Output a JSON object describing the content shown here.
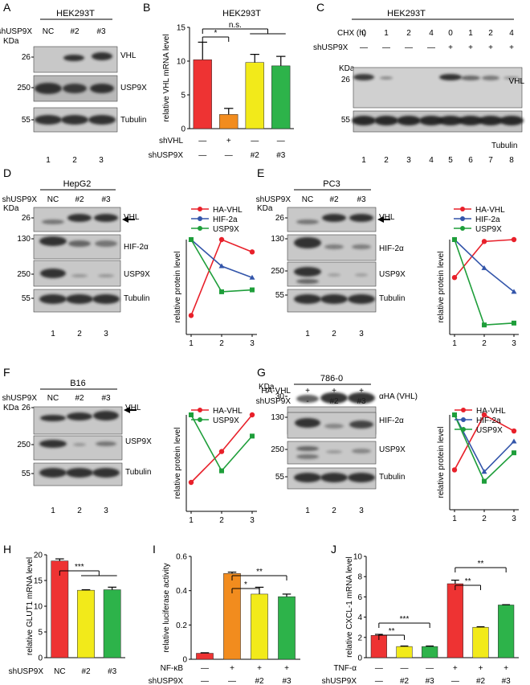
{
  "panels": {
    "A": {
      "letter": "A",
      "cell": "HEK293T",
      "lane_label": "shUSP9X",
      "lanes": [
        "NC",
        "#2",
        "#3"
      ],
      "kda": "KDa",
      "bands": [
        {
          "mw": "26",
          "name": "VHL"
        },
        {
          "mw": "250",
          "name": "USP9X"
        },
        {
          "mw": "55",
          "name": "Tubulin"
        }
      ],
      "lane_numbers": [
        "1",
        "2",
        "3"
      ]
    },
    "B": {
      "letter": "B",
      "title": "HEK293T",
      "ylabel": "relative VHL mRNA level",
      "sig": [
        "*",
        "n.s."
      ],
      "rows": [
        {
          "label": "shVHL",
          "marks": [
            "—",
            "+",
            "—",
            "—"
          ]
        },
        {
          "label": "shUSP9X",
          "marks": [
            "—",
            "—",
            "#2",
            "#3"
          ]
        }
      ]
    },
    "C": {
      "letter": "C",
      "cell": "HEK293T",
      "chx_label": "CHX (h)",
      "chx": [
        "0",
        "1",
        "2",
        "4",
        "0",
        "1",
        "2",
        "4"
      ],
      "sh_label": "shUSP9X",
      "sh": [
        "—",
        "—",
        "—",
        "—",
        "+",
        "+",
        "+",
        "+"
      ],
      "kda": "KDa",
      "bands": [
        {
          "mw": "26",
          "name": "VHL"
        },
        {
          "mw": "55",
          "name": "Tubulin"
        }
      ],
      "lane_numbers": [
        "1",
        "2",
        "3",
        "4",
        "5",
        "6",
        "7",
        "8"
      ]
    },
    "D": {
      "letter": "D",
      "cell": "HepG2",
      "lane_label": "shUSP9X",
      "lanes": [
        "NC",
        "#2",
        "#3"
      ],
      "kda": "KDa",
      "bands": [
        {
          "mw": "26",
          "name": "VHL"
        },
        {
          "mw": "130",
          "name": "HIF-2α"
        },
        {
          "mw": "250",
          "name": "USP9X"
        },
        {
          "mw": "55",
          "name": "Tubulin"
        }
      ],
      "lane_numbers": [
        "1",
        "2",
        "3"
      ]
    },
    "E": {
      "letter": "E",
      "cell": "PC3",
      "lane_label": "shUSP9X",
      "lanes": [
        "NC",
        "#2",
        "#3"
      ],
      "kda": "KDa",
      "bands": [
        {
          "mw": "26",
          "name": "VHL"
        },
        {
          "mw": "130",
          "name": "HIF-2α"
        },
        {
          "mw": "250",
          "name": "USP9X"
        },
        {
          "mw": "55",
          "name": "Tubulin"
        }
      ],
      "lane_numbers": [
        "1",
        "2",
        "3"
      ]
    },
    "F": {
      "letter": "F",
      "cell": "B16",
      "lane_label": "shUSP9X",
      "lanes": [
        "NC",
        "#2",
        "#3"
      ],
      "kda": "KDa",
      "bands": [
        {
          "mw": "26",
          "name": "VHL"
        },
        {
          "mw": "250",
          "name": "USP9X"
        },
        {
          "mw": "55",
          "name": "Tubulin"
        }
      ],
      "lane_numbers": [
        "1",
        "2",
        "3"
      ]
    },
    "G": {
      "letter": "G",
      "cell": "786-0",
      "ha_label": "HA-VHL",
      "ha": [
        "+",
        "+",
        "+"
      ],
      "lane_label": "shUSP9X",
      "lanes": [
        "-",
        "#2",
        "#3"
      ],
      "kda": "KDa",
      "bands": [
        {
          "mw": "30",
          "name": "αHA (VHL)"
        },
        {
          "mw": "130",
          "name": "HIF-2α"
        },
        {
          "mw": "250",
          "name": "USP9X"
        },
        {
          "mw": "55",
          "name": "Tubulin"
        }
      ],
      "lane_numbers": [
        "1",
        "2",
        "3"
      ]
    },
    "H": {
      "letter": "H",
      "ylabel": "relative GLUT1 mRNA level",
      "sig": [
        "***"
      ],
      "rows": [
        {
          "label": "shUSP9X",
          "marks": [
            "NC",
            "#2",
            "#3"
          ]
        }
      ]
    },
    "I": {
      "letter": "I",
      "ylabel": "relative luciferase activity",
      "sig": [
        "**",
        "*"
      ],
      "rows": [
        {
          "label": "NF-κB",
          "marks": [
            "—",
            "+",
            "+",
            "+"
          ]
        },
        {
          "label": "shUSP9X",
          "marks": [
            "—",
            "—",
            "#2",
            "#3"
          ]
        }
      ]
    },
    "J": {
      "letter": "J",
      "ylabel": "relative CXCL-1 mRNA level",
      "sig": [
        "**",
        "**",
        "***",
        "**"
      ],
      "rows": [
        {
          "label": "TNF-α",
          "marks": [
            "—",
            "—",
            "—",
            "+",
            "+",
            "+"
          ]
        },
        {
          "label": "shUSP9X",
          "marks": [
            "—",
            "#2",
            "#3",
            "—",
            "#2",
            "#3"
          ]
        }
      ]
    }
  },
  "chart_data": [
    {
      "id": "B",
      "type": "bar",
      "title": "HEK293T",
      "xlabel": "",
      "ylabel": "relative VHL mRNA level",
      "ylim": [
        0,
        15
      ],
      "yticks": [
        0,
        5,
        10,
        15
      ],
      "categories": [
        "shVHL — / shUSP9X —",
        "shVHL + / shUSP9X —",
        "shVHL — / shUSP9X #2",
        "shVHL — / shUSP9X #3"
      ],
      "values": [
        10.2,
        2.1,
        9.8,
        9.3
      ],
      "errors": [
        2.6,
        0.9,
        1.2,
        1.4
      ],
      "colors": [
        "#ee3333",
        "#f28c1e",
        "#f2ea1a",
        "#2db34a"
      ]
    },
    {
      "id": "D",
      "type": "line",
      "xlabel": "",
      "ylabel": "relative protein level",
      "x": [
        1,
        2,
        3
      ],
      "ylim": [
        0,
        1
      ],
      "series": [
        {
          "name": "HA-VHL",
          "color": "#e8202a",
          "values": [
            0.2,
            1.0,
            0.87
          ]
        },
        {
          "name": "HIF-2a",
          "color": "#3355aa",
          "values": [
            1.0,
            0.72,
            0.6
          ]
        },
        {
          "name": "USP9X",
          "color": "#1e9e3a",
          "values": [
            1.0,
            0.45,
            0.47
          ]
        }
      ]
    },
    {
      "id": "E",
      "type": "line",
      "xlabel": "",
      "ylabel": "relative protein level",
      "x": [
        1,
        2,
        3
      ],
      "ylim": [
        0,
        1
      ],
      "series": [
        {
          "name": "HA-VHL",
          "color": "#e8202a",
          "values": [
            0.6,
            0.98,
            1.0
          ]
        },
        {
          "name": "HIF-2a",
          "color": "#3355aa",
          "values": [
            1.0,
            0.7,
            0.45
          ]
        },
        {
          "name": "USP9X",
          "color": "#1e9e3a",
          "values": [
            1.0,
            0.1,
            0.12
          ]
        }
      ]
    },
    {
      "id": "F",
      "type": "line",
      "xlabel": "",
      "ylabel": "relative protein level",
      "x": [
        1,
        2,
        3
      ],
      "ylim": [
        0,
        1
      ],
      "series": [
        {
          "name": "HA-VHL",
          "color": "#e8202a",
          "values": [
            0.3,
            0.62,
            1.0
          ]
        },
        {
          "name": "USP9X",
          "color": "#1e9e3a",
          "values": [
            1.0,
            0.42,
            0.78
          ]
        }
      ]
    },
    {
      "id": "G",
      "type": "line",
      "xlabel": "",
      "ylabel": "relative protein level",
      "x": [
        1,
        2,
        3
      ],
      "ylim": [
        0,
        1
      ],
      "series": [
        {
          "name": "HA-VHL",
          "color": "#e8202a",
          "values": [
            0.42,
            1.0,
            0.83
          ]
        },
        {
          "name": "HIF-2a",
          "color": "#3355aa",
          "values": [
            1.0,
            0.4,
            0.72
          ]
        },
        {
          "name": "USP9X",
          "color": "#1e9e3a",
          "values": [
            1.0,
            0.3,
            0.6
          ]
        }
      ]
    },
    {
      "id": "H",
      "type": "bar",
      "xlabel": "",
      "ylabel": "relative GLUT1 mRNA level",
      "ylim": [
        0,
        20
      ],
      "yticks": [
        0,
        5,
        10,
        15,
        20
      ],
      "categories": [
        "NC",
        "#2",
        "#3"
      ],
      "values": [
        18.8,
        13.1,
        13.2
      ],
      "errors": [
        0.4,
        0.1,
        0.5
      ],
      "colors": [
        "#ee3333",
        "#f2ea1a",
        "#2db34a"
      ]
    },
    {
      "id": "I",
      "type": "bar",
      "xlabel": "",
      "ylabel": "relative luciferase activity",
      "ylim": [
        0,
        0.6
      ],
      "yticks": [
        0,
        0.2,
        0.4,
        0.6
      ],
      "categories": [
        "NF-κB — / shUSP9X —",
        "NF-κB + / shUSP9X —",
        "NF-κB + / shUSP9X #2",
        "NF-κB + / shUSP9X #3"
      ],
      "values": [
        0.035,
        0.5,
        0.38,
        0.365
      ],
      "errors": [
        0.003,
        0.008,
        0.04,
        0.015
      ],
      "colors": [
        "#ee3333",
        "#f28c1e",
        "#f2ea1a",
        "#2db34a"
      ]
    },
    {
      "id": "J",
      "type": "bar",
      "xlabel": "",
      "ylabel": "relative CXCL-1 mRNA level",
      "ylim": [
        0,
        10
      ],
      "yticks": [
        0,
        2,
        4,
        6,
        8,
        10
      ],
      "categories": [
        "—/—",
        "—/#2",
        "—/#3",
        "TNF-α/—",
        "TNF-α/#2",
        "TNF-α/#3"
      ],
      "values": [
        2.2,
        1.1,
        1.1,
        7.3,
        3.0,
        5.2
      ],
      "errors": [
        0.1,
        0.05,
        0.05,
        0.35,
        0.05,
        0.03
      ],
      "colors": [
        "#ee3333",
        "#f2ea1a",
        "#2db34a",
        "#ee3333",
        "#f2ea1a",
        "#2db34a"
      ]
    }
  ]
}
